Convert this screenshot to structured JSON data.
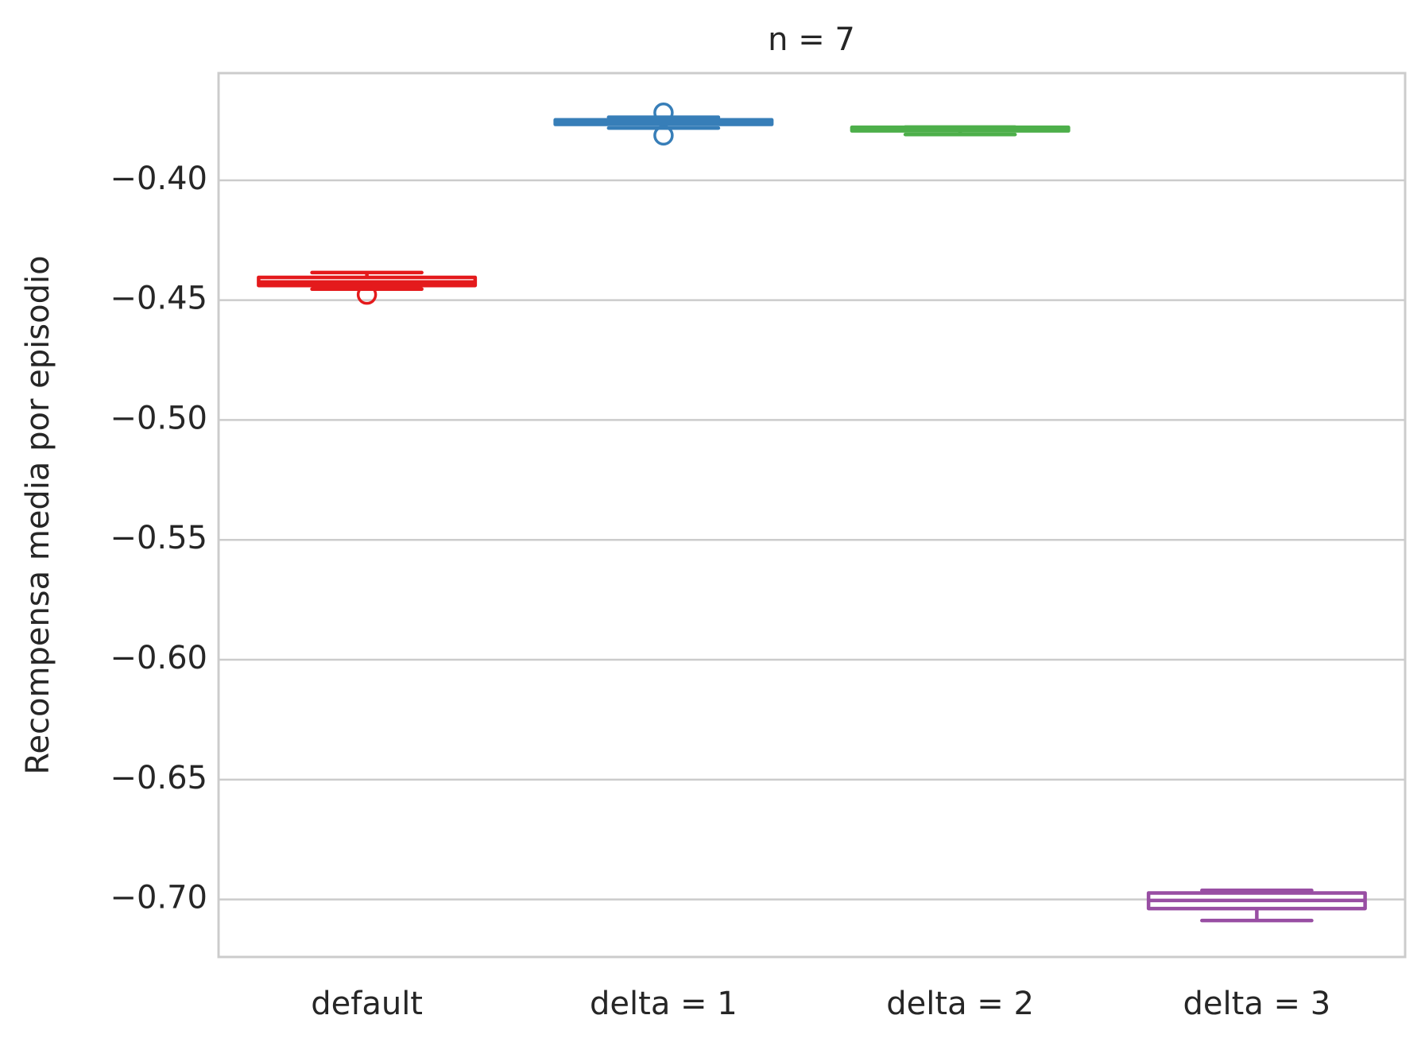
{
  "chart_data": {
    "type": "box",
    "title": "n = 7",
    "ylabel": "Recompensa media por episodio",
    "categories": [
      "default",
      "delta = 1",
      "delta = 2",
      "delta = 3"
    ],
    "boxes": [
      {
        "color": "#e41a1c",
        "whislo": -0.4454,
        "q1": -0.4439,
        "med": -0.4424,
        "q3": -0.4405,
        "whishi": -0.4385,
        "fliers": [
          -0.4477
        ]
      },
      {
        "color": "#377eb8",
        "whislo": -0.3782,
        "q1": -0.3767,
        "med": -0.3756,
        "q3": -0.3748,
        "whishi": -0.3737,
        "fliers": [
          -0.3718,
          -0.3813
        ]
      },
      {
        "color": "#4daf4a",
        "whislo": -0.3809,
        "q1": -0.3794,
        "med": -0.3786,
        "q3": -0.3779,
        "whishi": -0.3778,
        "fliers": []
      },
      {
        "color": "#984ea3",
        "whislo": -0.7088,
        "q1": -0.7038,
        "med": -0.7004,
        "q3": -0.6973,
        "whishi": -0.6962,
        "fliers": []
      }
    ],
    "ylim": [
      -0.724,
      -0.3553
    ],
    "yticks": [
      {
        "value": -0.7,
        "label": "−0.70"
      },
      {
        "value": -0.65,
        "label": "−0.65"
      },
      {
        "value": -0.6,
        "label": "−0.60"
      },
      {
        "value": -0.55,
        "label": "−0.55"
      },
      {
        "value": -0.5,
        "label": "−0.50"
      },
      {
        "value": -0.45,
        "label": "−0.45"
      },
      {
        "value": -0.4,
        "label": "−0.40"
      }
    ],
    "grid": true
  }
}
